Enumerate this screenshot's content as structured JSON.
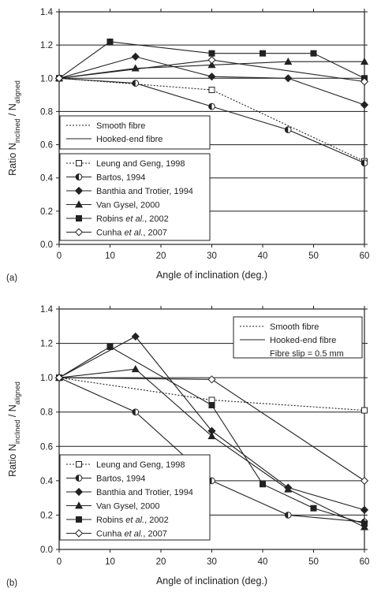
{
  "chart_data": [
    {
      "panel": "(a)",
      "type": "line",
      "xlabel": "Angle of inclination (deg.)",
      "ylabel_base": "Ratio N",
      "ylabel_sub1": "inclined",
      "ylabel_mid": " / N",
      "ylabel_sub2": "aligned",
      "xlim": [
        0,
        60
      ],
      "ylim": [
        0,
        1.4
      ],
      "x_ticks": [
        "0",
        "10",
        "20",
        "30",
        "40",
        "50",
        "60"
      ],
      "y_ticks": [
        "0.0",
        "0.2",
        "0.4",
        "0.6",
        "0.8",
        "1.0",
        "1.2",
        "1.4"
      ],
      "grid": "horizontal",
      "line_style_legend": [
        {
          "label": "Smooth fibre",
          "style": "dotted"
        },
        {
          "label": "Hooked-end fibre",
          "style": "solid"
        }
      ],
      "series": [
        {
          "name": "Leung and Geng, 1998",
          "name_parts": [
            "Leung and Geng, 1998"
          ],
          "marker": "square-open",
          "style": "dotted",
          "x": [
            0,
            30,
            60
          ],
          "y": [
            1.0,
            0.93,
            0.5
          ]
        },
        {
          "name": "Bartos, 1994",
          "name_parts": [
            "Bartos, 1994"
          ],
          "marker": "circle-half",
          "style": "solid",
          "x": [
            0,
            15,
            30,
            45,
            60
          ],
          "y": [
            1.0,
            0.97,
            0.83,
            0.69,
            0.49
          ]
        },
        {
          "name": "Banthia and Trotier, 1994",
          "name_parts": [
            "Banthia and Trotier, 1994"
          ],
          "marker": "diamond-filled",
          "style": "solid",
          "x": [
            0,
            15,
            30,
            45,
            60
          ],
          "y": [
            1.0,
            1.13,
            1.01,
            1.0,
            0.84
          ]
        },
        {
          "name": "Van Gysel, 2000",
          "name_parts": [
            "Van Gysel, 2000"
          ],
          "marker": "triangle-filled",
          "style": "solid",
          "x": [
            0,
            15,
            30,
            45,
            60
          ],
          "y": [
            1.0,
            1.06,
            1.08,
            1.1,
            1.1
          ]
        },
        {
          "name": "Robins et al., 2002",
          "name_parts": [
            "Robins ",
            "et al.",
            ", 2002"
          ],
          "marker": "square-filled",
          "style": "solid",
          "x": [
            0,
            10,
            30,
            40,
            50,
            60
          ],
          "y": [
            1.0,
            1.22,
            1.15,
            1.15,
            1.15,
            1.0
          ]
        },
        {
          "name": "Cunha et al., 2007",
          "name_parts": [
            "Cunha ",
            "et al.",
            ", 2007"
          ],
          "marker": "diamond-open",
          "style": "solid",
          "x": [
            0,
            30,
            60
          ],
          "y": [
            1.0,
            1.11,
            0.98
          ]
        }
      ]
    },
    {
      "panel": "(b)",
      "type": "line",
      "xlabel": "Angle of inclination (deg.)",
      "ylabel_base": "Ratio N",
      "ylabel_sub1": "inclined",
      "ylabel_mid": " / N",
      "ylabel_sub2": "aligned",
      "xlim": [
        0,
        60
      ],
      "ylim": [
        0,
        1.4
      ],
      "x_ticks": [
        "0",
        "10",
        "20",
        "30",
        "40",
        "50",
        "60"
      ],
      "y_ticks": [
        "0.0",
        "0.2",
        "0.4",
        "0.6",
        "0.8",
        "1.0",
        "1.2",
        "1.4"
      ],
      "grid": "horizontal",
      "line_style_legend": [
        {
          "label": "Smooth fibre",
          "style": "dotted"
        },
        {
          "label": "Hooked-end fibre",
          "style": "solid"
        },
        {
          "label": "Fibre slip = 0.5 mm",
          "style": "none"
        }
      ],
      "series": [
        {
          "name": "Leung and Geng, 1998",
          "name_parts": [
            "Leung and Geng, 1998"
          ],
          "marker": "square-open",
          "style": "dotted",
          "x": [
            0,
            30,
            60
          ],
          "y": [
            1.0,
            0.87,
            0.81
          ]
        },
        {
          "name": "Bartos, 1994",
          "name_parts": [
            "Bartos, 1994"
          ],
          "marker": "circle-half",
          "style": "solid",
          "x": [
            0,
            15,
            30,
            45,
            60
          ],
          "y": [
            1.0,
            0.8,
            0.4,
            0.2,
            0.16
          ]
        },
        {
          "name": "Banthia and Trotier, 1994",
          "name_parts": [
            "Banthia and Trotier, 1994"
          ],
          "marker": "diamond-filled",
          "style": "solid",
          "x": [
            0,
            15,
            30,
            45,
            60
          ],
          "y": [
            1.0,
            1.24,
            0.69,
            0.36,
            0.23
          ]
        },
        {
          "name": "Van Gysel, 2000",
          "name_parts": [
            "Van Gysel, 2000"
          ],
          "marker": "triangle-filled",
          "style": "solid",
          "x": [
            0,
            15,
            30,
            45,
            60
          ],
          "y": [
            1.0,
            1.05,
            0.66,
            0.35,
            0.13
          ]
        },
        {
          "name": "Robins et al., 2002",
          "name_parts": [
            "Robins ",
            "et al.",
            ", 2002"
          ],
          "marker": "square-filled",
          "style": "solid",
          "x": [
            0,
            10,
            30,
            40,
            50,
            60
          ],
          "y": [
            1.0,
            1.18,
            0.84,
            0.38,
            0.24,
            0.15
          ]
        },
        {
          "name": "Cunha et al., 2007",
          "name_parts": [
            "Cunha ",
            "et al.",
            ", 2007"
          ],
          "marker": "diamond-open",
          "style": "solid",
          "x": [
            0,
            30,
            60
          ],
          "y": [
            1.0,
            0.99,
            0.4
          ]
        }
      ]
    }
  ]
}
